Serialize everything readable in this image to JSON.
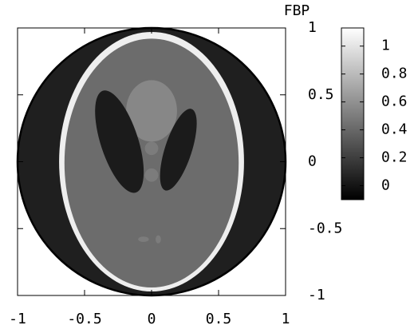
{
  "chart_data": {
    "type": "heatmap",
    "title": "FBP",
    "xlim": [
      -1,
      1
    ],
    "ylim": [
      -1,
      1
    ],
    "xticks": [
      -1,
      -0.5,
      0,
      0.5,
      1
    ],
    "yticks": [
      -1,
      -0.5,
      0,
      0.5,
      1
    ],
    "colorbar": {
      "clim": [
        -0.1,
        1.13
      ],
      "ticks": [
        0,
        0.2,
        0.4,
        0.6,
        0.8,
        1
      ]
    },
    "shapes": [
      {
        "cx": 0,
        "cy": 0,
        "rx": 1,
        "ry": 1,
        "angle": 0,
        "value": 0.05
      },
      {
        "cx": 0,
        "cy": 0,
        "rx": 0.69,
        "ry": 0.97,
        "angle": 0,
        "value": 1.05
      },
      {
        "cx": 0,
        "cy": -0.01,
        "rx": 0.65,
        "ry": 0.93,
        "angle": 0,
        "value": 0.42
      },
      {
        "cx": 0,
        "cy": 0.38,
        "rx": 0.19,
        "ry": 0.23,
        "angle": 0,
        "value": 0.55
      },
      {
        "cx": -0.24,
        "cy": 0.15,
        "rx": 0.14,
        "ry": 0.4,
        "angle": 18,
        "value": 0.03
      },
      {
        "cx": 0.2,
        "cy": 0.09,
        "rx": 0.1,
        "ry": 0.32,
        "angle": -18,
        "value": 0.03
      },
      {
        "cx": 0,
        "cy": 0.1,
        "rx": 0.05,
        "ry": 0.05,
        "angle": 0,
        "value": 0.5
      },
      {
        "cx": 0,
        "cy": -0.1,
        "rx": 0.05,
        "ry": 0.05,
        "angle": 0,
        "value": 0.5
      },
      {
        "cx": -0.06,
        "cy": -0.58,
        "rx": 0.04,
        "ry": 0.02,
        "angle": 0,
        "value": 0.5
      },
      {
        "cx": 0.05,
        "cy": -0.58,
        "rx": 0.02,
        "ry": 0.03,
        "angle": 0,
        "value": 0.5
      }
    ]
  }
}
